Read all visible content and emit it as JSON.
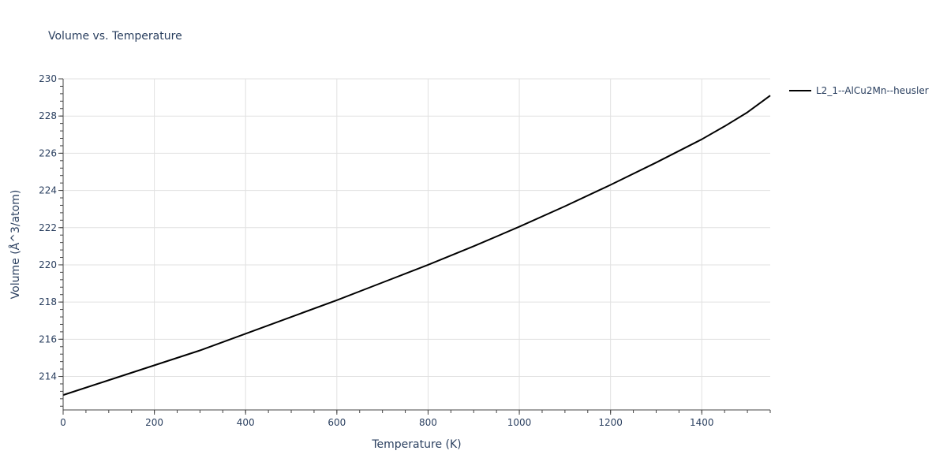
{
  "chart_data": {
    "type": "line",
    "title": "Volume vs. Temperature",
    "xlabel": "Temperature (K)",
    "ylabel": "Volume (Å^3/atom)",
    "xlim": [
      0,
      1550
    ],
    "ylim": [
      212.2,
      230
    ],
    "x_ticks": [
      0,
      200,
      400,
      600,
      800,
      1000,
      1200,
      1400
    ],
    "y_ticks": [
      214,
      216,
      218,
      220,
      222,
      224,
      226,
      228,
      230
    ],
    "x_tick_labels": [
      "0",
      "200",
      "400",
      "600",
      "800",
      "1000",
      "1200",
      "1400"
    ],
    "y_tick_labels": [
      "214",
      "216",
      "218",
      "220",
      "222",
      "224",
      "226",
      "228",
      "230"
    ],
    "grid": true,
    "legend_position": "top-right",
    "series": [
      {
        "name": "L2_1--AlCu2Mn--heusler",
        "color": "#000000",
        "x": [
          0,
          100,
          200,
          300,
          400,
          500,
          600,
          700,
          800,
          900,
          1000,
          1100,
          1200,
          1300,
          1400,
          1450,
          1500,
          1550
        ],
        "y": [
          213.0,
          213.8,
          214.6,
          215.4,
          216.3,
          217.2,
          218.1,
          219.05,
          220.0,
          221.0,
          222.05,
          223.15,
          224.3,
          225.5,
          226.75,
          227.45,
          228.2,
          229.1
        ]
      }
    ]
  }
}
